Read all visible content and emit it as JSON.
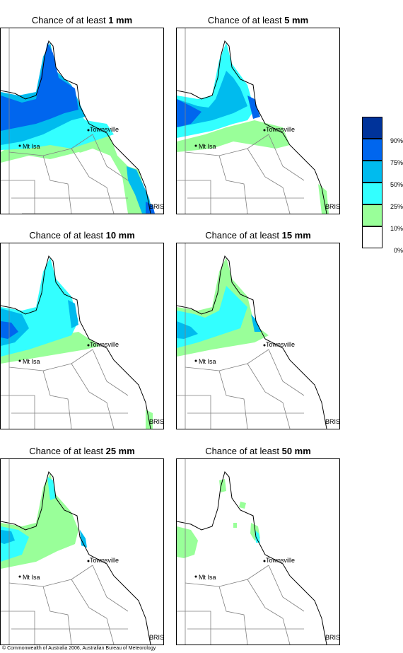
{
  "panels": [
    {
      "title_prefix": "Chance of at least ",
      "threshold": "1 mm"
    },
    {
      "title_prefix": "Chance of at least ",
      "threshold": "5 mm"
    },
    {
      "title_prefix": "Chance of at least ",
      "threshold": "10 mm"
    },
    {
      "title_prefix": "Chance of at least ",
      "threshold": "15 mm"
    },
    {
      "title_prefix": "Chance of at least ",
      "threshold": "25 mm"
    },
    {
      "title_prefix": "Chance of at least ",
      "threshold": "50 mm"
    }
  ],
  "places": {
    "townsville": "Townsville",
    "mt_isa": "Mt Isa",
    "brisbane": "BRIS"
  },
  "legend": {
    "labels": [
      "90%",
      "75%",
      "50%",
      "25%",
      "10%",
      "0%"
    ],
    "colors": [
      "#00339a",
      "#0066ee",
      "#00bbee",
      "#33ffff",
      "#99ff99",
      "#ffffff"
    ]
  },
  "colors": {
    "level_10": "#99ff99",
    "level_25": "#33ffff",
    "level_50": "#00bbee",
    "level_75": "#0066ee",
    "level_90": "#00339a",
    "boundary": "#808080",
    "coast": "#000000"
  },
  "copyright": "© Commonwealth of Australia 2006, Australian Bureau of Meteorology"
}
